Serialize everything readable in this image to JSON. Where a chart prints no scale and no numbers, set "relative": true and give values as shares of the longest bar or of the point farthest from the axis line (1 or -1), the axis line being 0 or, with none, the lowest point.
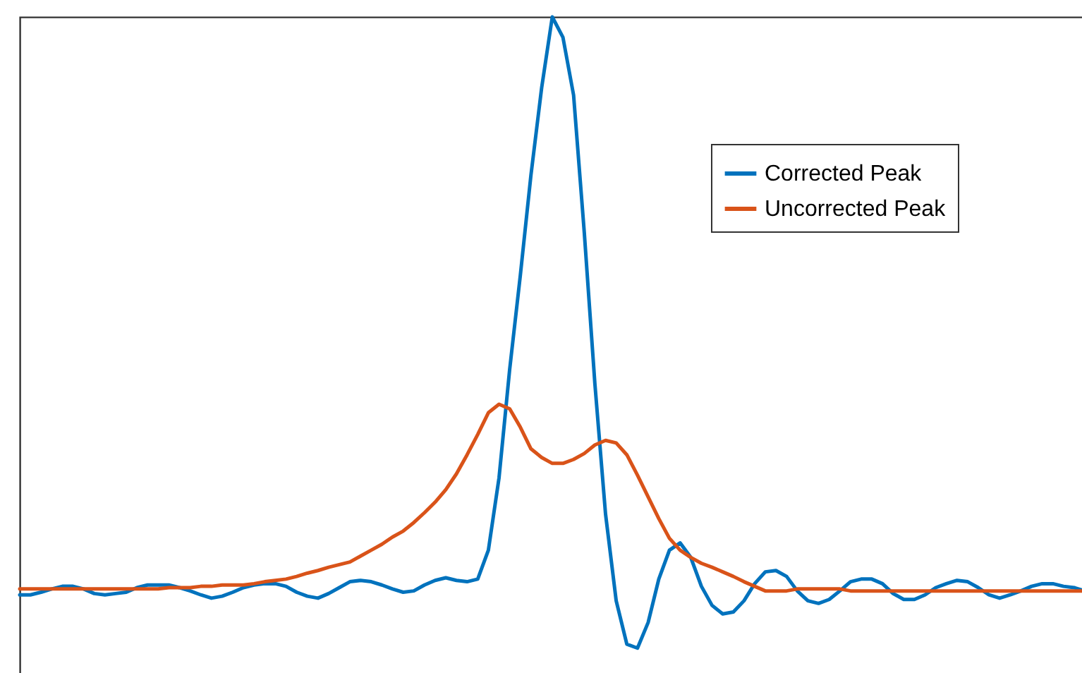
{
  "chart_data": {
    "type": "line",
    "relative": true,
    "legend": "top right",
    "grid": false,
    "categories": [
      null,
      null,
      null,
      null,
      null,
      null,
      null,
      null,
      null,
      null,
      null,
      null,
      null,
      null,
      null,
      null,
      null,
      null,
      null,
      null,
      null,
      null,
      null,
      null,
      null,
      null,
      null,
      null,
      null,
      null,
      null,
      null,
      null,
      null,
      null,
      null,
      null,
      null,
      null,
      null,
      null,
      null,
      null,
      null,
      null,
      null,
      null,
      null,
      null,
      null,
      null,
      null,
      null,
      null,
      null,
      null,
      null,
      null,
      null,
      null,
      null,
      null,
      null,
      null,
      null,
      null,
      null,
      null,
      null,
      null,
      null,
      null,
      null,
      null,
      null,
      null,
      null,
      null,
      null,
      null,
      null,
      null,
      null,
      null,
      null,
      null,
      null,
      null,
      null,
      null,
      null,
      null,
      null,
      null,
      null,
      null,
      null,
      null,
      null,
      null,
      null
    ],
    "series": [
      {
        "name": "Corrected Peak",
        "color": "#0072bd",
        "values": [
          0.121,
          0.121,
          0.125,
          0.13,
          0.134,
          0.134,
          0.13,
          0.123,
          0.121,
          0.123,
          0.125,
          0.132,
          0.136,
          0.136,
          0.136,
          0.132,
          0.127,
          0.121,
          0.116,
          0.119,
          0.125,
          0.132,
          0.136,
          0.138,
          0.138,
          0.134,
          0.125,
          0.119,
          0.116,
          0.123,
          0.132,
          0.141,
          0.143,
          0.141,
          0.136,
          0.13,
          0.125,
          0.127,
          0.136,
          0.143,
          0.147,
          0.143,
          0.141,
          0.145,
          0.189,
          0.299,
          0.464,
          0.607,
          0.76,
          0.892,
          1,
          0.969,
          0.881,
          0.673,
          0.442,
          0.244,
          0.112,
          0.046,
          0.04,
          0.079,
          0.145,
          0.189,
          0.2,
          0.178,
          0.134,
          0.105,
          0.092,
          0.095,
          0.112,
          0.138,
          0.156,
          0.158,
          0.149,
          0.127,
          0.112,
          0.108,
          0.114,
          0.127,
          0.141,
          0.145,
          0.145,
          0.138,
          0.123,
          0.114,
          0.114,
          0.121,
          0.132,
          0.138,
          0.143,
          0.141,
          0.132,
          0.121,
          0.116,
          0.121,
          0.127,
          0.134,
          0.138,
          0.138,
          0.134,
          0.132,
          0.127
        ]
      },
      {
        "name": "Uncorrected Peak",
        "color": "#d95319",
        "values": [
          0.13,
          0.13,
          0.13,
          0.13,
          0.13,
          0.13,
          0.13,
          0.13,
          0.13,
          0.13,
          0.13,
          0.13,
          0.13,
          0.13,
          0.132,
          0.132,
          0.132,
          0.134,
          0.134,
          0.136,
          0.136,
          0.136,
          0.138,
          0.141,
          0.143,
          0.145,
          0.149,
          0.154,
          0.158,
          0.163,
          0.167,
          0.171,
          0.18,
          0.189,
          0.198,
          0.209,
          0.218,
          0.231,
          0.246,
          0.262,
          0.281,
          0.305,
          0.334,
          0.365,
          0.398,
          0.411,
          0.404,
          0.376,
          0.343,
          0.33,
          0.321,
          0.321,
          0.327,
          0.336,
          0.349,
          0.356,
          0.352,
          0.334,
          0.303,
          0.27,
          0.237,
          0.207,
          0.189,
          0.178,
          0.169,
          0.163,
          0.156,
          0.149,
          0.141,
          0.134,
          0.127,
          0.127,
          0.127,
          0.13,
          0.13,
          0.13,
          0.13,
          0.13,
          0.127,
          0.127,
          0.127,
          0.127,
          0.127,
          0.127,
          0.127,
          0.127,
          0.127,
          0.127,
          0.127,
          0.127,
          0.127,
          0.127,
          0.127,
          0.127,
          0.127,
          0.127,
          0.127,
          0.127,
          0.127,
          0.127,
          0.127
        ]
      }
    ]
  }
}
